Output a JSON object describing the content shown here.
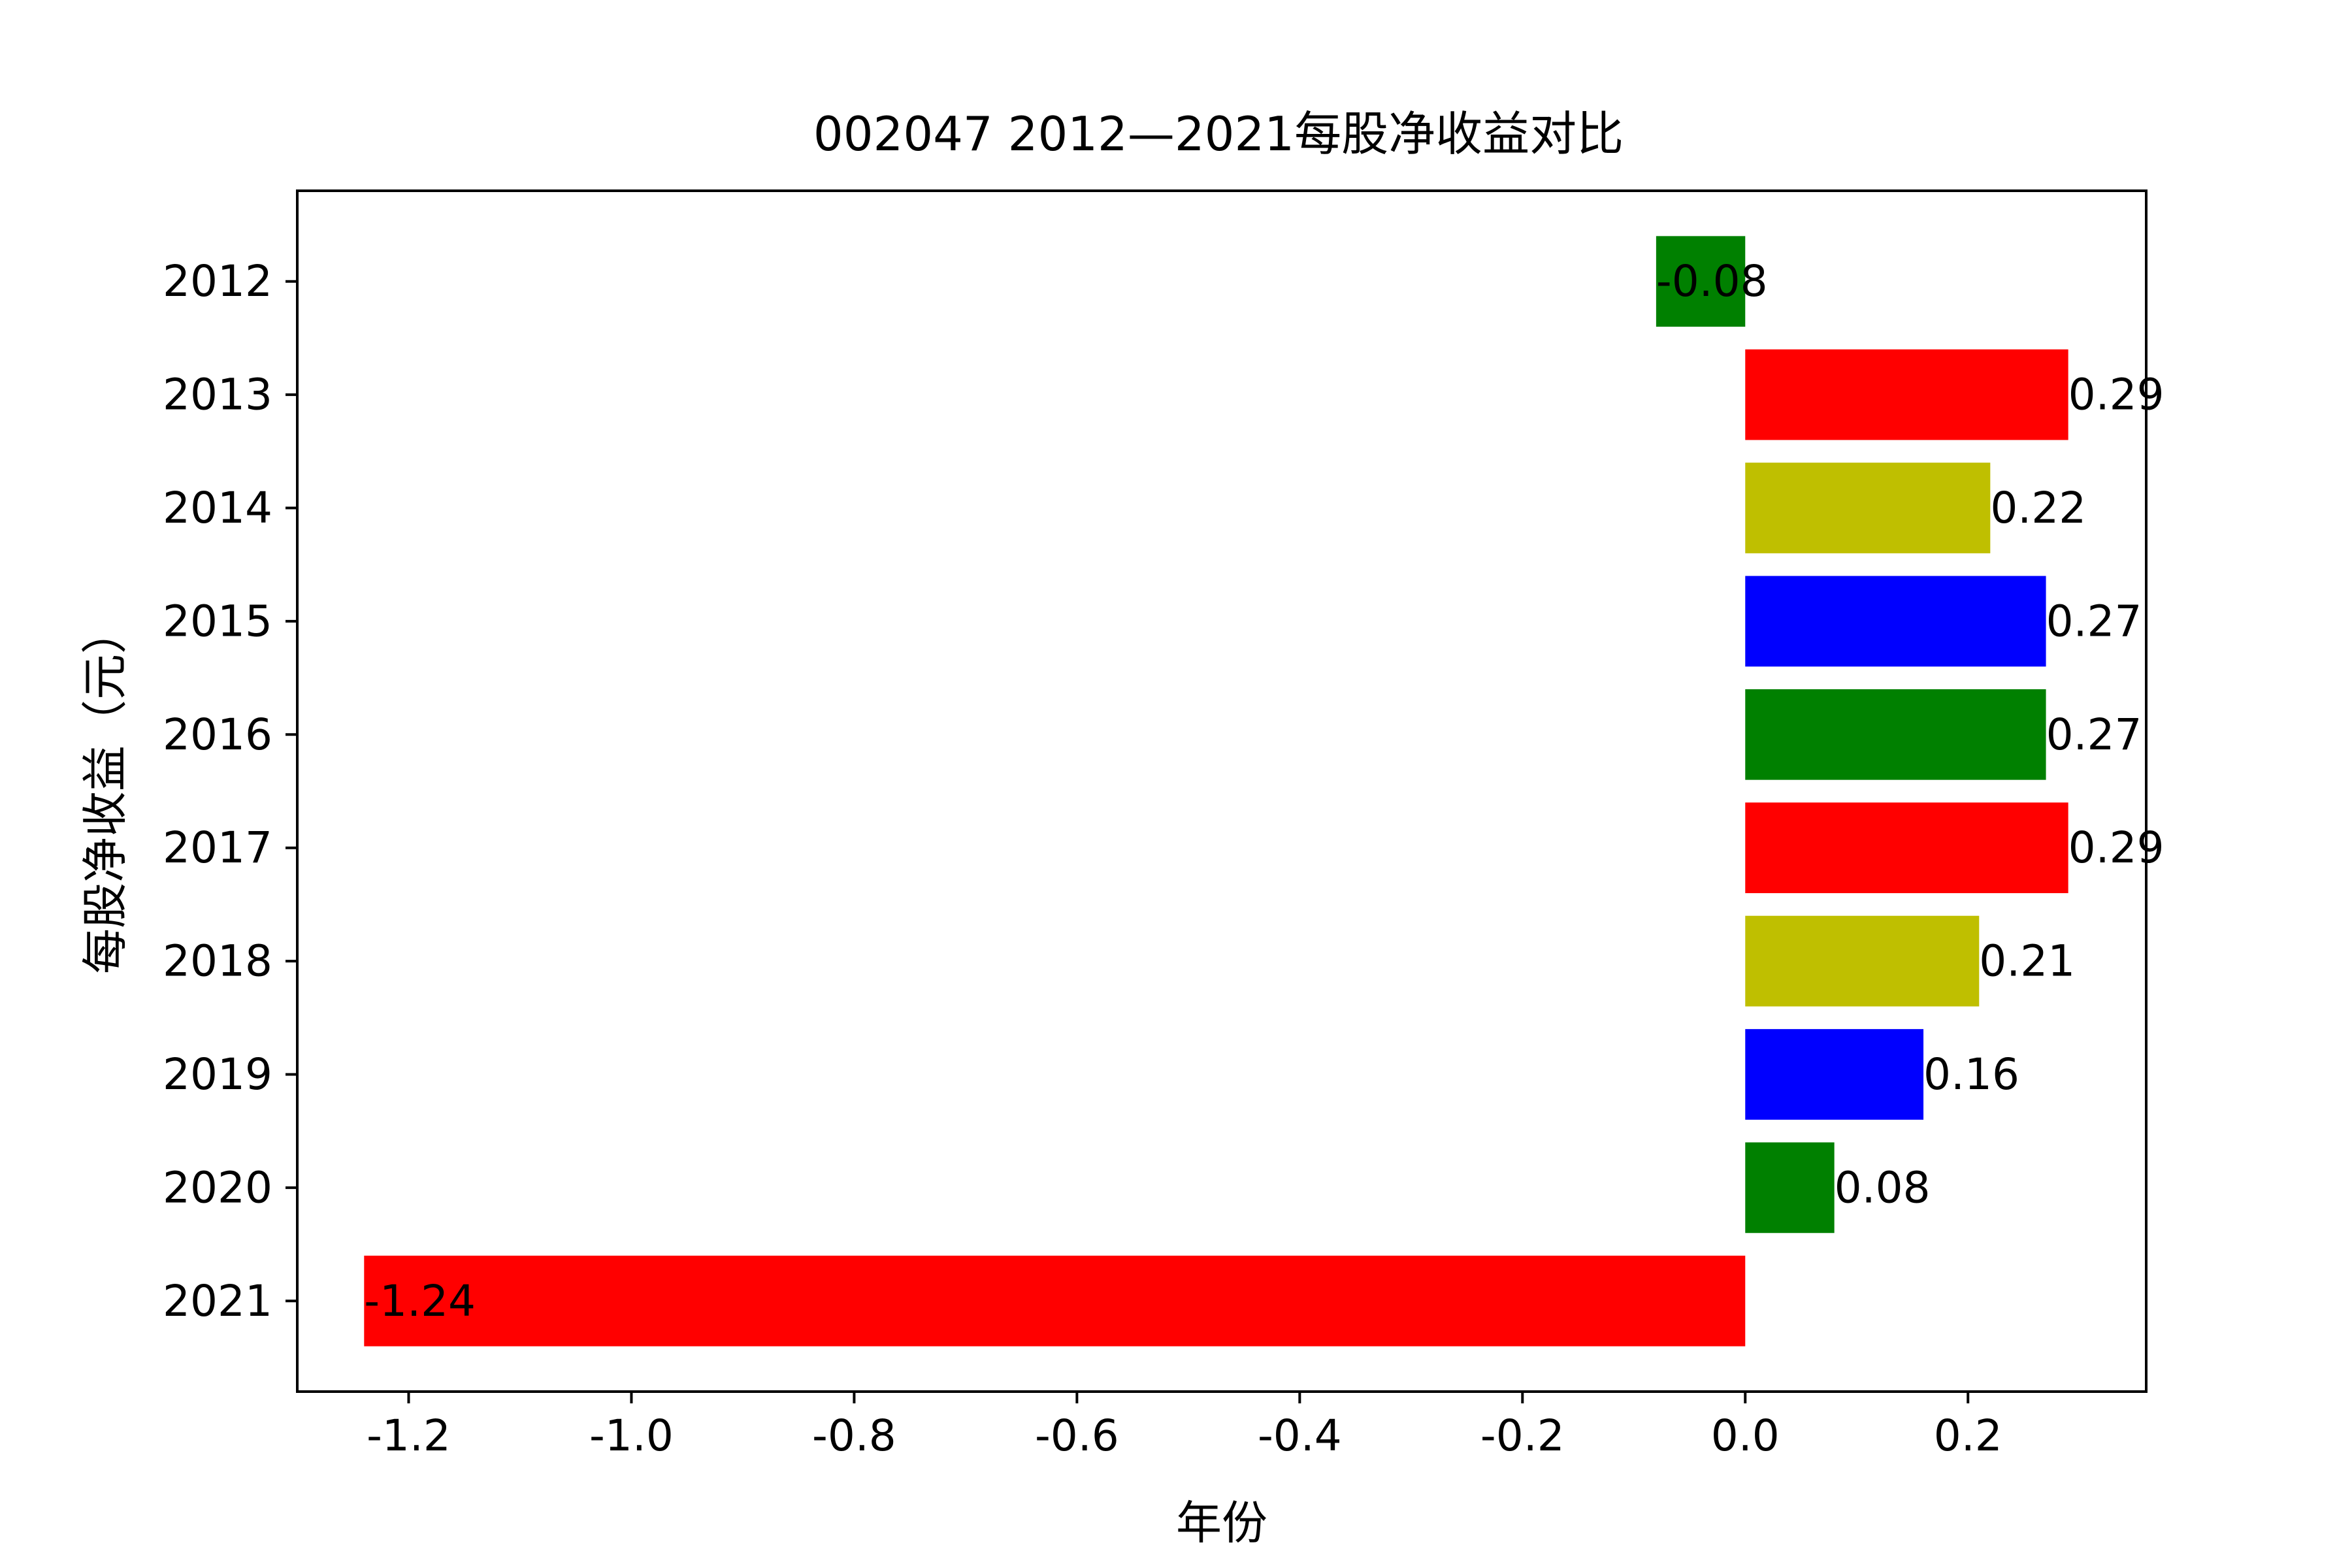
{
  "chart_data": {
    "type": "bar",
    "orientation": "horizontal",
    "title": "002047 2012—2021每股净收益对比",
    "xlabel": "年份",
    "ylabel": "每股净收益（元）",
    "categories": [
      "2012",
      "2013",
      "2014",
      "2015",
      "2016",
      "2017",
      "2018",
      "2019",
      "2020",
      "2021"
    ],
    "values": [
      -0.08,
      0.29,
      0.22,
      0.27,
      0.27,
      0.29,
      0.21,
      0.16,
      0.08,
      -1.24
    ],
    "data_labels": [
      "-0.08",
      "0.29",
      "0.22",
      "0.27",
      "0.27",
      "0.29",
      "0.21",
      "0.16",
      "0.08",
      "-1.24"
    ],
    "colors": [
      "#008000",
      "#ff0000",
      "#bfbf00",
      "#0000ff",
      "#008000",
      "#ff0000",
      "#bfbf00",
      "#0000ff",
      "#008000",
      "#ff0000"
    ],
    "xlim": [
      -1.3,
      0.36
    ],
    "xticks": [
      -1.2,
      -1.0,
      -0.8,
      -0.6,
      -0.4,
      -0.2,
      0.0,
      0.2
    ],
    "xtick_labels": [
      "-1.2",
      "-1.0",
      "-0.8",
      "-0.6",
      "-0.4",
      "-0.2",
      "0.0",
      "0.2"
    ],
    "grid": false,
    "legend": "none"
  }
}
